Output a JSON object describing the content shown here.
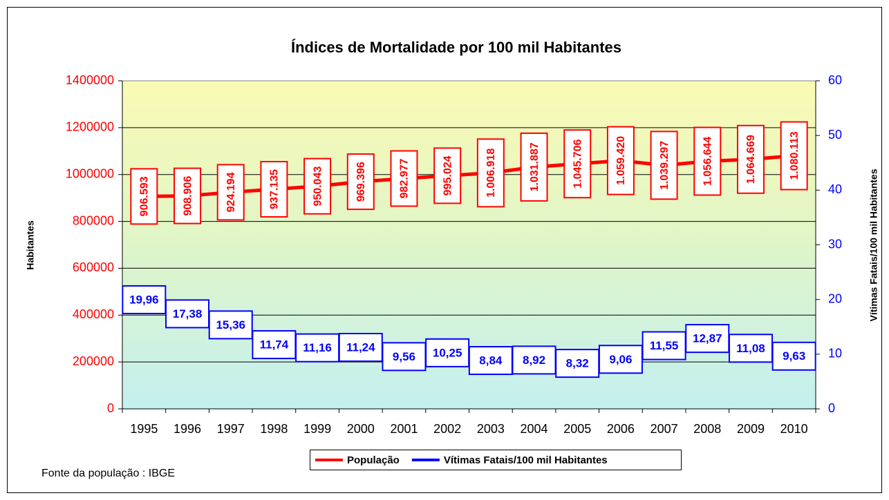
{
  "chart_data": {
    "type": "line",
    "title": "Índices de Mortalidade por 100 mil Habitantes",
    "y_label": "Habitantes",
    "y2_label": "Vítimas Fatais/100 mil Habitantes",
    "source": "Fonte da população : IBGE",
    "categories": [
      "1995",
      "1996",
      "1997",
      "1998",
      "1999",
      "2000",
      "2001",
      "2002",
      "2003",
      "2004",
      "2005",
      "2006",
      "2007",
      "2008",
      "2009",
      "2010"
    ],
    "series": [
      {
        "name": "População",
        "color": "#ff0000",
        "axis": "y",
        "values": [
          906593,
          908906,
          924194,
          937135,
          950043,
          969396,
          982977,
          995024,
          1006918,
          1031887,
          1045706,
          1059420,
          1039297,
          1056644,
          1064669,
          1080113
        ],
        "value_labels": [
          "906.593",
          "908.906",
          "924.194",
          "937.135",
          "950.043",
          "969.396",
          "982.977",
          "995.024",
          "1.006.918",
          "1.031.887",
          "1.045.706",
          "1.059.420",
          "1.039.297",
          "1.056.644",
          "1.064.669",
          "1.080.113"
        ]
      },
      {
        "name": "Vítimas Fatais/100 mil Habitantes",
        "color": "#0000ff",
        "axis": "y2",
        "values": [
          19.96,
          17.38,
          15.36,
          11.74,
          11.16,
          11.24,
          9.56,
          10.25,
          8.84,
          8.92,
          8.32,
          9.06,
          11.55,
          12.87,
          11.08,
          9.63
        ],
        "value_labels": [
          "19,96",
          "17,38",
          "15,36",
          "11,74",
          "11,16",
          "11,24",
          "9,56",
          "10,25",
          "8,84",
          "8,92",
          "8,32",
          "9,06",
          "11,55",
          "12,87",
          "11,08",
          "9,63"
        ]
      }
    ],
    "ylim": [
      0,
      1400000
    ],
    "yticks": [
      0,
      200000,
      400000,
      600000,
      800000,
      1000000,
      1200000,
      1400000
    ],
    "y2lim": [
      0,
      60
    ],
    "y2ticks": [
      0,
      10,
      20,
      30,
      40,
      50,
      60
    ],
    "grid": true,
    "legend": "bottom"
  }
}
